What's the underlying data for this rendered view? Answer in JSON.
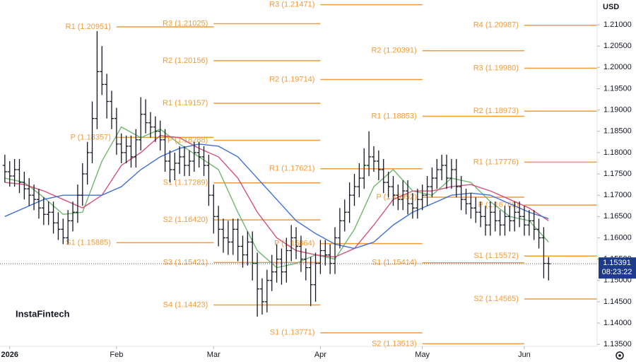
{
  "chart_data": {
    "type": "ohlc",
    "currency": "USD",
    "logo": "InstaFintech",
    "xlim": [
      -1,
      122
    ],
    "ylim": [
      1.13453,
      1.21581
    ],
    "yticks": [
      {
        "value": 1.135,
        "label": "1.13500"
      },
      {
        "value": 1.14,
        "label": "1.14000"
      },
      {
        "value": 1.145,
        "label": "1.14500"
      },
      {
        "value": 1.15,
        "label": "1.15000"
      },
      {
        "value": 1.155,
        "label": "1.15500"
      },
      {
        "value": 1.16,
        "label": "1.16000"
      },
      {
        "value": 1.165,
        "label": "1.16500"
      },
      {
        "value": 1.17,
        "label": "1.17000"
      },
      {
        "value": 1.175,
        "label": "1.17500"
      },
      {
        "value": 1.18,
        "label": "1.18000"
      },
      {
        "value": 1.185,
        "label": "1.18500"
      },
      {
        "value": 1.19,
        "label": "1.19000"
      },
      {
        "value": 1.195,
        "label": "1.19500"
      },
      {
        "value": 1.2,
        "label": "1.20000"
      },
      {
        "value": 1.205,
        "label": "1.20500"
      },
      {
        "value": 1.21,
        "label": "1.21000"
      }
    ],
    "xticks": [
      {
        "value": 1,
        "label": "2026"
      },
      {
        "value": 23,
        "label": "Feb",
        "levels": [
          {
            "label": "R1 (1.20951)",
            "value": 1.20951
          },
          {
            "label": "P (1.18357)",
            "value": 1.18357
          },
          {
            "label": "S1 (1.15885)",
            "value": 1.15885
          }
        ]
      },
      {
        "value": 43,
        "label": "Mar",
        "levels": [
          {
            "label": "R3 (1.21025)",
            "value": 1.21025
          },
          {
            "label": "R2 (1.20156)",
            "value": 1.20156
          },
          {
            "label": "R1 (1.19157)",
            "value": 1.19157
          },
          {
            "label": "P (1.18288)",
            "value": 1.18288
          },
          {
            "label": "S1 (1.17289)",
            "value": 1.17289
          },
          {
            "label": "S2 (1.16420)",
            "value": 1.1642
          },
          {
            "label": "S3 (1.15421)",
            "value": 1.15421
          },
          {
            "label": "S4 (1.14423)",
            "value": 1.14423
          }
        ]
      },
      {
        "value": 65,
        "label": "Apr",
        "levels": [
          {
            "label": "R3 (1.21471)",
            "value": 1.21471
          },
          {
            "label": "R2 (1.19714)",
            "value": 1.19714
          },
          {
            "label": "R1 (1.17621)",
            "value": 1.17621
          },
          {
            "label": "P (1.15864)",
            "value": 1.15864
          },
          {
            "label": "S1 (1.13771)",
            "value": 1.13771
          }
        ]
      },
      {
        "value": 86,
        "label": "May",
        "levels": [
          {
            "label": "R2 (1.20391)",
            "value": 1.20391
          },
          {
            "label": "R1 (1.18853)",
            "value": 1.18853
          },
          {
            "label": "P (1.16952)",
            "value": 1.16952
          },
          {
            "label": "S1 (1.15414)",
            "value": 1.15414
          },
          {
            "label": "S2 (1.13513)",
            "value": 1.13513
          }
        ]
      },
      {
        "value": 107,
        "label": "Jun",
        "levels": [
          {
            "label": "R4 (1.20987)",
            "value": 1.20987
          },
          {
            "label": "R3 (1.19980)",
            "value": 1.1998
          },
          {
            "label": "R2 (1.18973)",
            "value": 1.18973
          },
          {
            "label": "R1 (1.17776)",
            "value": 1.17776
          },
          {
            "label": "P (1.16769)",
            "value": 1.16769
          },
          {
            "label": "S1 (1.15572)",
            "value": 1.15572
          },
          {
            "label": "S2 (1.14565)",
            "value": 1.14565
          }
        ]
      }
    ],
    "bars": [
      [
        1.177,
        1.1795,
        1.173,
        1.1755
      ],
      [
        1.1755,
        1.178,
        1.172,
        1.1745
      ],
      [
        1.1745,
        1.1785,
        1.172,
        1.176
      ],
      [
        1.176,
        1.1785,
        1.1705,
        1.173
      ],
      [
        1.173,
        1.1755,
        1.169,
        1.1715
      ],
      [
        1.1715,
        1.174,
        1.1675,
        1.17
      ],
      [
        1.17,
        1.1725,
        1.1665,
        1.169
      ],
      [
        1.169,
        1.1715,
        1.1645,
        1.167
      ],
      [
        1.167,
        1.1695,
        1.163,
        1.1655
      ],
      [
        1.1655,
        1.1685,
        1.163,
        1.166
      ],
      [
        1.166,
        1.1685,
        1.161,
        1.1635
      ],
      [
        1.1635,
        1.166,
        1.1595,
        1.162
      ],
      [
        1.162,
        1.1645,
        1.1585,
        1.16
      ],
      [
        1.16,
        1.1665,
        1.1585,
        1.164
      ],
      [
        1.164,
        1.1685,
        1.1615,
        1.166
      ],
      [
        1.166,
        1.1725,
        1.1635,
        1.17
      ],
      [
        1.17,
        1.1775,
        1.1675,
        1.175
      ],
      [
        1.175,
        1.1825,
        1.1725,
        1.18
      ],
      [
        1.18,
        1.192,
        1.1775,
        1.188
      ],
      [
        1.188,
        1.2085,
        1.1855,
        1.199
      ],
      [
        1.199,
        1.205,
        1.1935,
        1.196
      ],
      [
        1.196,
        1.1985,
        1.188,
        1.192
      ],
      [
        1.192,
        1.1945,
        1.1855,
        1.188
      ],
      [
        1.188,
        1.1905,
        1.1795,
        1.182
      ],
      [
        1.182,
        1.1845,
        1.1775,
        1.18
      ],
      [
        1.18,
        1.184,
        1.1775,
        1.1815
      ],
      [
        1.1815,
        1.184,
        1.1765,
        1.179
      ],
      [
        1.179,
        1.1855,
        1.1765,
        1.183
      ],
      [
        1.183,
        1.193,
        1.1805,
        1.189
      ],
      [
        1.189,
        1.1925,
        1.1845,
        1.187
      ],
      [
        1.187,
        1.1895,
        1.1835,
        1.186
      ],
      [
        1.186,
        1.1885,
        1.1825,
        1.185
      ],
      [
        1.185,
        1.1875,
        1.1805,
        1.183
      ],
      [
        1.183,
        1.1855,
        1.1755,
        1.178
      ],
      [
        1.178,
        1.1805,
        1.173,
        1.176
      ],
      [
        1.176,
        1.18,
        1.1735,
        1.1775
      ],
      [
        1.1775,
        1.1815,
        1.175,
        1.179
      ],
      [
        1.179,
        1.1815,
        1.1745,
        1.177
      ],
      [
        1.177,
        1.1805,
        1.1745,
        1.178
      ],
      [
        1.178,
        1.1825,
        1.1755,
        1.18
      ],
      [
        1.18,
        1.1825,
        1.1765,
        1.179
      ],
      [
        1.179,
        1.1815,
        1.1745,
        1.177
      ],
      [
        1.177,
        1.1795,
        1.1675,
        1.17
      ],
      [
        1.17,
        1.1725,
        1.161,
        1.165
      ],
      [
        1.165,
        1.1675,
        1.158,
        1.162
      ],
      [
        1.162,
        1.1645,
        1.1565,
        1.16
      ],
      [
        1.16,
        1.164,
        1.156,
        1.159
      ],
      [
        1.159,
        1.1645,
        1.156,
        1.162
      ],
      [
        1.162,
        1.1645,
        1.1545,
        1.158
      ],
      [
        1.158,
        1.1605,
        1.153,
        1.156
      ],
      [
        1.156,
        1.1615,
        1.1535,
        1.159
      ],
      [
        1.159,
        1.1615,
        1.15,
        1.154
      ],
      [
        1.154,
        1.1565,
        1.1415,
        1.148
      ],
      [
        1.148,
        1.1505,
        1.142,
        1.145
      ],
      [
        1.145,
        1.1525,
        1.1425,
        1.15
      ],
      [
        1.15,
        1.156,
        1.1475,
        1.152
      ],
      [
        1.152,
        1.1585,
        1.1495,
        1.155
      ],
      [
        1.155,
        1.1575,
        1.149,
        1.152
      ],
      [
        1.152,
        1.16,
        1.1495,
        1.157
      ],
      [
        1.157,
        1.163,
        1.1545,
        1.16
      ],
      [
        1.16,
        1.1625,
        1.155,
        1.158
      ],
      [
        1.158,
        1.1605,
        1.152,
        1.155
      ],
      [
        1.155,
        1.1575,
        1.15,
        1.153
      ],
      [
        1.153,
        1.1555,
        1.144,
        1.149
      ],
      [
        1.149,
        1.1565,
        1.145,
        1.154
      ],
      [
        1.154,
        1.1595,
        1.1515,
        1.157
      ],
      [
        1.157,
        1.1595,
        1.1535,
        1.156
      ],
      [
        1.156,
        1.1585,
        1.1515,
        1.154
      ],
      [
        1.154,
        1.1625,
        1.1515,
        1.16
      ],
      [
        1.16,
        1.167,
        1.1575,
        1.164
      ],
      [
        1.164,
        1.169,
        1.1615,
        1.166
      ],
      [
        1.166,
        1.173,
        1.1635,
        1.17
      ],
      [
        1.17,
        1.175,
        1.1675,
        1.172
      ],
      [
        1.172,
        1.1775,
        1.1695,
        1.174
      ],
      [
        1.174,
        1.181,
        1.1715,
        1.177
      ],
      [
        1.177,
        1.185,
        1.1745,
        1.179
      ],
      [
        1.179,
        1.1815,
        1.1755,
        1.178
      ],
      [
        1.178,
        1.1805,
        1.1735,
        1.176
      ],
      [
        1.176,
        1.1785,
        1.1705,
        1.173
      ],
      [
        1.173,
        1.1755,
        1.1695,
        1.172
      ],
      [
        1.172,
        1.1745,
        1.1675,
        1.17
      ],
      [
        1.17,
        1.1725,
        1.1665,
        1.169
      ],
      [
        1.169,
        1.1735,
        1.1665,
        1.171
      ],
      [
        1.171,
        1.1735,
        1.1655,
        1.168
      ],
      [
        1.168,
        1.1705,
        1.1645,
        1.167
      ],
      [
        1.167,
        1.1715,
        1.1645,
        1.169
      ],
      [
        1.169,
        1.1725,
        1.1665,
        1.17
      ],
      [
        1.17,
        1.1745,
        1.1675,
        1.172
      ],
      [
        1.172,
        1.1765,
        1.1695,
        1.174
      ],
      [
        1.174,
        1.1785,
        1.1715,
        1.176
      ],
      [
        1.176,
        1.1795,
        1.1735,
        1.177
      ],
      [
        1.177,
        1.1795,
        1.1715,
        1.174
      ],
      [
        1.174,
        1.1785,
        1.1715,
        1.176
      ],
      [
        1.176,
        1.1785,
        1.1695,
        1.172
      ],
      [
        1.172,
        1.1745,
        1.1665,
        1.169
      ],
      [
        1.169,
        1.1715,
        1.1655,
        1.168
      ],
      [
        1.168,
        1.1705,
        1.1645,
        1.167
      ],
      [
        1.167,
        1.1695,
        1.1635,
        1.166
      ],
      [
        1.166,
        1.1685,
        1.1625,
        1.165
      ],
      [
        1.165,
        1.1675,
        1.1605,
        1.163
      ],
      [
        1.163,
        1.1685,
        1.1605,
        1.166
      ],
      [
        1.166,
        1.1685,
        1.1615,
        1.164
      ],
      [
        1.164,
        1.1665,
        1.1605,
        1.163
      ],
      [
        1.163,
        1.1675,
        1.1605,
        1.165
      ],
      [
        1.165,
        1.1675,
        1.1615,
        1.164
      ],
      [
        1.164,
        1.1685,
        1.1615,
        1.166
      ],
      [
        1.166,
        1.1685,
        1.1625,
        1.165
      ],
      [
        1.165,
        1.1675,
        1.1605,
        1.163
      ],
      [
        1.163,
        1.1665,
        1.1605,
        1.164
      ],
      [
        1.164,
        1.1665,
        1.1595,
        1.162
      ],
      [
        1.162,
        1.1645,
        1.1575,
        1.16
      ],
      [
        1.16,
        1.1625,
        1.1505,
        1.154
      ],
      [
        1.154,
        1.1555,
        1.15,
        1.1539
      ]
    ],
    "ma_x": [
      0,
      4,
      8,
      12,
      16,
      20,
      24,
      28,
      32,
      36,
      40,
      44,
      48,
      52,
      56,
      60,
      64,
      68,
      72,
      76,
      80,
      84,
      88,
      92,
      96,
      100,
      104,
      108,
      112
    ],
    "series": [
      {
        "color": "#6fb86f",
        "values": [
          1.174,
          1.173,
          1.1695,
          1.1655,
          1.166,
          1.178,
          1.186,
          1.1835,
          1.1855,
          1.182,
          1.179,
          1.176,
          1.166,
          1.157,
          1.153,
          1.154,
          1.156,
          1.155,
          1.162,
          1.172,
          1.176,
          1.171,
          1.17,
          1.174,
          1.173,
          1.1685,
          1.165,
          1.164,
          1.159
        ]
      },
      {
        "color": "#d6507a",
        "values": [
          1.173,
          1.1725,
          1.171,
          1.169,
          1.167,
          1.17,
          1.177,
          1.18,
          1.184,
          1.1835,
          1.181,
          1.179,
          1.174,
          1.166,
          1.16,
          1.157,
          1.156,
          1.1555,
          1.1575,
          1.163,
          1.169,
          1.171,
          1.171,
          1.172,
          1.1725,
          1.171,
          1.169,
          1.167,
          1.164
        ]
      },
      {
        "color": "#3f6fd8",
        "values": [
          1.165,
          1.167,
          1.169,
          1.17,
          1.17,
          1.17,
          1.172,
          1.176,
          1.179,
          1.181,
          1.182,
          1.1815,
          1.179,
          1.174,
          1.169,
          1.164,
          1.161,
          1.1585,
          1.1575,
          1.159,
          1.163,
          1.166,
          1.168,
          1.17,
          1.1705,
          1.17,
          1.168,
          1.166,
          1.1645
        ]
      }
    ],
    "level_color": "#f29b38",
    "bar_color": "#131722",
    "price": {
      "value": 1.15391,
      "time": "08:23:22",
      "color": "#1e3a8a"
    }
  }
}
